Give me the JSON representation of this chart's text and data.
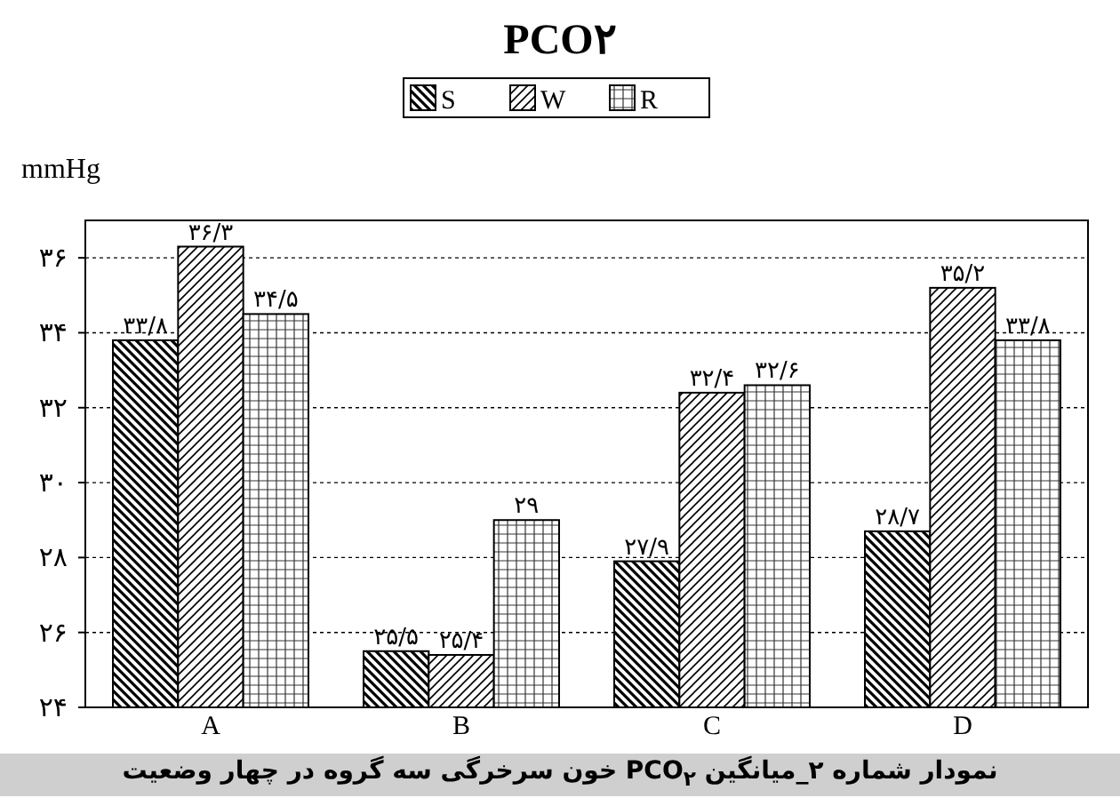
{
  "chart_data": {
    "type": "bar",
    "title": "PCO۲",
    "ylabel": "mmHg",
    "categories": [
      "A",
      "B",
      "C",
      "D"
    ],
    "series": [
      {
        "name": "S",
        "color": "#000000",
        "values": [
          33.8,
          25.5,
          27.9,
          28.7
        ],
        "value_labels": [
          "۳۳/۸",
          "۲۵/۵",
          "۲۷/۹",
          "۲۸/۷"
        ]
      },
      {
        "name": "W",
        "color": "#000000",
        "values": [
          36.3,
          25.4,
          32.4,
          35.2
        ],
        "value_labels": [
          "۳۶/۳",
          "۲۵/۴",
          "۳۲/۴",
          "۳۵/۲"
        ]
      },
      {
        "name": "R",
        "color": "#000000",
        "values": [
          34.5,
          29,
          32.6,
          33.8
        ],
        "value_labels": [
          "۳۴/۵",
          "۲۹",
          "۳۲/۶",
          "۳۳/۸"
        ]
      }
    ],
    "ylim": [
      24,
      37
    ],
    "yticks": [
      {
        "value": 24,
        "label": "۲۴"
      },
      {
        "value": 26,
        "label": "۲۶"
      },
      {
        "value": 28,
        "label": "۲۸"
      },
      {
        "value": 30,
        "label": "۳۰"
      },
      {
        "value": 32,
        "label": "۳۲"
      },
      {
        "value": 34,
        "label": "۳۴"
      },
      {
        "value": 36,
        "label": "۳۶"
      }
    ],
    "grid": "y",
    "legend": "top",
    "annotations": [
      "نمودار شماره ۲_میانگین PCO$_{۲}$ خون سرخرگی سه گروه در چهار وضعیت"
    ]
  }
}
